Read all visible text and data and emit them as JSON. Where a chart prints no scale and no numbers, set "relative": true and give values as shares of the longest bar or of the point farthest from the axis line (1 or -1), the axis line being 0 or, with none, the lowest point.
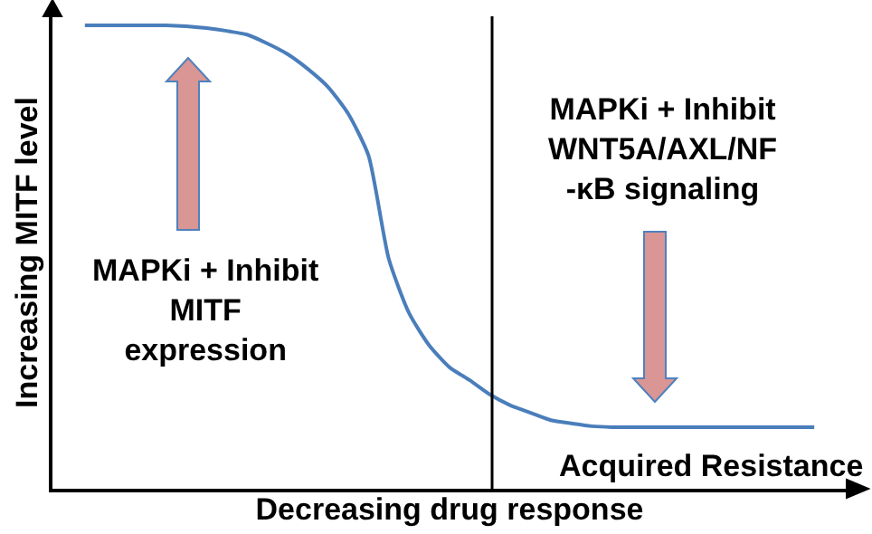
{
  "chart_data": {
    "type": "line",
    "relative": true,
    "xlabel": "Decreasing drug response",
    "ylabel": "Increasing MITF level",
    "categories": [
      null,
      null,
      null,
      null,
      null,
      null,
      null,
      null,
      null,
      null,
      null,
      null,
      null,
      null,
      null,
      null,
      null,
      null,
      null,
      null,
      null,
      null,
      null,
      null,
      null,
      null,
      null,
      null,
      null,
      null,
      null,
      null,
      null,
      null,
      null,
      null,
      null
    ],
    "series": [
      {
        "color": "#4a7ebb",
        "values": [
          1,
          1,
          1,
          1,
          1,
          0.998,
          0.994,
          0.988,
          0.98,
          0.961,
          0.938,
          0.906,
          0.867,
          0.809,
          0.719,
          0.496,
          0.379,
          0.309,
          0.262,
          0.234,
          0.203,
          0.18,
          0.164,
          0.148,
          0.141,
          0.135,
          0.133,
          0.133,
          0.133,
          0.133,
          0.133,
          0.133,
          0.133,
          0.133,
          0.133,
          0.133,
          0.133
        ]
      }
    ],
    "annotations": [
      "MAPKi + Inhibit\nMITF\nexpression",
      "MAPKi + Inhibit\nWNT5A/AXL/NF\n-κB signaling",
      "Acquired Resistance"
    ],
    "marker": "none",
    "line_style": "solid"
  }
}
